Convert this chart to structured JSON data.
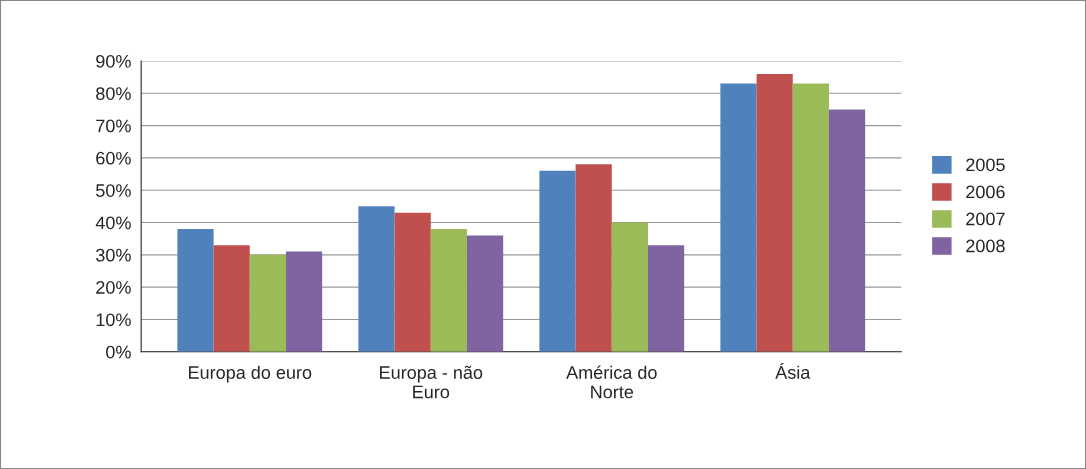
{
  "chart_data": {
    "type": "bar",
    "categories": [
      "Europa do euro",
      "Europa - não\nEuro",
      "América do\nNorte",
      "Ásia"
    ],
    "series": [
      {
        "name": "2005",
        "color": "#4f81bd",
        "values": [
          38,
          45,
          56,
          83
        ]
      },
      {
        "name": "2006",
        "color": "#c0504d",
        "values": [
          33,
          43,
          58,
          86
        ]
      },
      {
        "name": "2007",
        "color": "#9bbb59",
        "values": [
          30,
          38,
          40,
          83
        ]
      },
      {
        "name": "2008",
        "color": "#8064a2",
        "values": [
          31,
          36,
          33,
          75
        ]
      }
    ],
    "ylim": [
      0,
      90
    ],
    "yticks": [
      {
        "value": 0,
        "label": "0%"
      },
      {
        "value": 10,
        "label": "10%"
      },
      {
        "value": 20,
        "label": "20%"
      },
      {
        "value": 30,
        "label": "30%"
      },
      {
        "value": 40,
        "label": "40%"
      },
      {
        "value": 50,
        "label": "50%"
      },
      {
        "value": 60,
        "label": "60%"
      },
      {
        "value": 70,
        "label": "70%"
      },
      {
        "value": 80,
        "label": "80%"
      },
      {
        "value": 90,
        "label": "90%"
      }
    ],
    "grid": "y",
    "legend": "right"
  }
}
